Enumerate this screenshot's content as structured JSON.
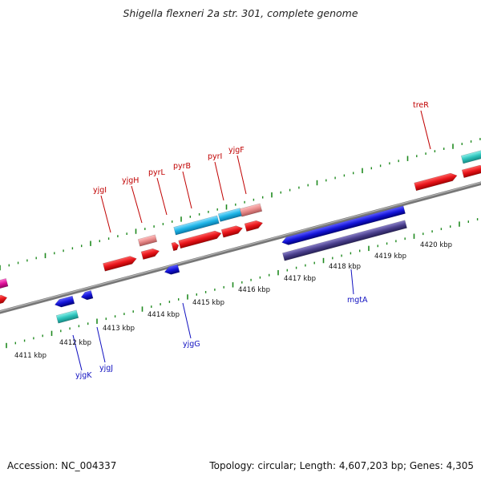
{
  "title": "Shigella flexneri 2a str. 301, complete genome",
  "footer": {
    "accession": "Accession: NC_004337",
    "summary": "Topology: circular; Length: 4,607,203 bp; Genes: 4,305"
  },
  "colors": {
    "backbone": "#888888",
    "tick": "#1f8a1f",
    "forward_gene": "#e8141a",
    "reverse_gene": "#1414d8",
    "forward_label": "#c00000",
    "reverse_label": "#1010c0",
    "rna_cyan": "#1eb4e6",
    "teal": "#2ec4bc",
    "pink": "#e88a8a",
    "dark_purple": "#4a3f8c",
    "magenta": "#e0119a"
  },
  "kbp_labels": [
    "4411 kbp",
    "4412 kbp",
    "4413 kbp",
    "4414 kbp",
    "4415 kbp",
    "4416 kbp",
    "4417 kbp",
    "4418 kbp",
    "4419 kbp",
    "4420 kbp"
  ],
  "forward_gene_labels": [
    "yjgI",
    "yjgH",
    "pyrL",
    "pyrB",
    "pyrI",
    "yjgF",
    "treR"
  ],
  "reverse_gene_labels": [
    "yjgK",
    "yjgJ",
    "yjgG",
    "mgtA"
  ]
}
